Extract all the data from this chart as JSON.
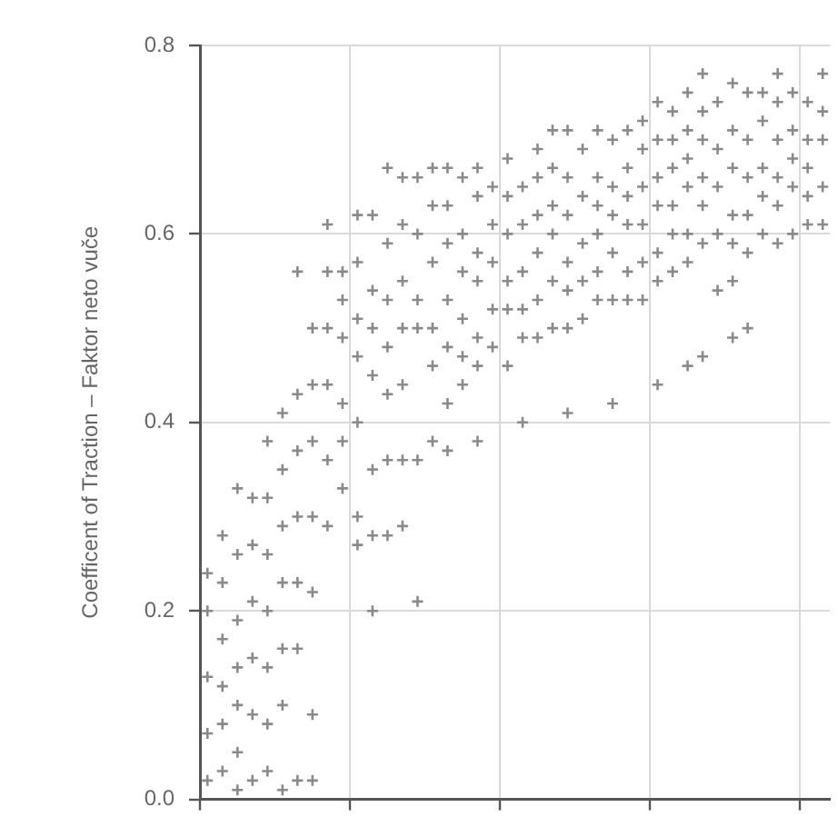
{
  "chart_data": {
    "type": "scatter",
    "ylabel": "Coefficent of Traction – Faktor neto vuče",
    "marker": "cross",
    "categories": [
      null,
      null,
      null,
      null,
      null,
      null,
      null,
      null,
      null,
      null,
      null,
      null,
      null,
      null,
      null,
      null,
      null,
      null,
      null,
      null,
      null,
      null,
      null,
      null,
      null,
      null,
      null,
      null,
      null,
      null,
      null,
      null,
      null,
      null,
      null,
      null,
      null,
      null,
      null,
      null,
      null,
      null
    ],
    "series": [
      {
        "color": "#8a8a8a",
        "values": [
          0.02,
          0.03,
          0.01,
          0.02,
          0.03,
          0.01,
          0.02,
          0.02,
          0.29,
          0.33,
          0.27,
          0.2,
          0.28,
          0.29,
          0.21,
          0.38,
          0.37,
          0.44,
          0.38,
          0.48,
          0.46,
          0.4,
          0.49,
          0.5,
          0.41,
          0.51,
          0.53,
          0.42,
          0.53,
          0.53,
          0.44,
          0.56,
          0.46,
          0.47,
          0.54,
          0.49,
          0.5,
          0.6,
          0.59,
          0.6,
          0.61,
          0.61
        ]
      },
      {
        "color": "#8a8a8a",
        "values": [
          0.07,
          0.08,
          0.05,
          0.09,
          0.08,
          0.1,
          0.16,
          0.09,
          0.36,
          0.38,
          0.3,
          0.28,
          0.36,
          0.36,
          0.36,
          0.46,
          0.42,
          0.47,
          0.46,
          0.52,
          0.52,
          0.49,
          0.53,
          0.55,
          0.5,
          0.55,
          0.56,
          0.53,
          0.56,
          0.57,
          0.55,
          0.6,
          0.57,
          0.59,
          0.6,
          0.55,
          0.58,
          0.64,
          0.63,
          0.65,
          0.64,
          0.65
        ]
      },
      {
        "color": "#8a8a8a",
        "values": [
          0.13,
          0.12,
          0.1,
          0.15,
          0.14,
          0.16,
          0.23,
          0.22,
          0.44,
          0.42,
          0.4,
          0.35,
          0.43,
          0.44,
          0.5,
          0.5,
          0.48,
          0.51,
          0.49,
          0.57,
          0.55,
          0.52,
          0.58,
          0.6,
          0.54,
          0.59,
          0.6,
          0.58,
          0.61,
          0.61,
          0.58,
          0.63,
          0.6,
          0.63,
          0.65,
          0.59,
          0.62,
          0.67,
          0.66,
          0.68,
          0.67,
          0.7
        ]
      },
      {
        "color": "#8a8a8a",
        "values": [
          0.2,
          0.17,
          0.14,
          0.21,
          0.2,
          0.23,
          0.3,
          0.3,
          0.5,
          0.49,
          0.47,
          0.45,
          0.48,
          0.5,
          0.53,
          0.57,
          0.53,
          0.56,
          0.55,
          0.61,
          0.6,
          0.56,
          0.62,
          0.63,
          0.57,
          0.64,
          0.63,
          0.62,
          0.64,
          0.65,
          0.63,
          0.67,
          0.65,
          0.66,
          0.69,
          0.62,
          0.66,
          0.72,
          0.7,
          0.71,
          0.7,
          0.73
        ]
      },
      {
        "color": "#8a8a8a",
        "values": [
          0.24,
          0.23,
          0.19,
          0.27,
          0.26,
          0.29,
          0.37,
          0.38,
          0.56,
          0.53,
          0.51,
          0.5,
          0.53,
          0.55,
          0.6,
          0.63,
          0.59,
          0.6,
          0.58,
          0.65,
          0.64,
          0.61,
          0.66,
          0.67,
          0.62,
          0.69,
          0.66,
          0.65,
          0.67,
          0.69,
          0.66,
          0.7,
          0.68,
          0.7,
          0.74,
          0.67,
          0.7,
          0.75,
          0.74,
          0.75,
          0.74,
          0.77
        ]
      },
      {
        "color": "#8a8a8a",
        "values": [
          null,
          0.28,
          0.26,
          0.32,
          0.32,
          0.35,
          0.43,
          0.44,
          0.61,
          0.56,
          0.57,
          0.54,
          0.59,
          0.61,
          0.66,
          0.67,
          0.63,
          0.66,
          0.64,
          null,
          0.68,
          0.65,
          0.69,
          0.71,
          0.66,
          null,
          0.71,
          0.7,
          0.71,
          0.72,
          0.7,
          0.73,
          0.71,
          0.73,
          null,
          0.71,
          0.75,
          null,
          0.77,
          null,
          null,
          null
        ]
      },
      {
        "color": "#8a8a8a",
        "values": [
          null,
          null,
          0.33,
          null,
          0.38,
          0.41,
          0.56,
          0.5,
          null,
          null,
          0.62,
          0.62,
          0.67,
          0.66,
          null,
          null,
          0.67,
          null,
          0.67,
          null,
          null,
          null,
          null,
          null,
          0.71,
          null,
          null,
          null,
          null,
          null,
          0.74,
          null,
          0.75,
          0.77,
          null,
          0.76,
          null,
          null,
          null,
          null,
          null,
          null
        ]
      }
    ],
    "ylim": [
      0,
      0.8
    ],
    "yticks": [
      {
        "value": 0,
        "label": "0.0"
      },
      0.2,
      0.4,
      0.6,
      0.8
    ],
    "grid": true,
    "tick_labels": "y"
  }
}
